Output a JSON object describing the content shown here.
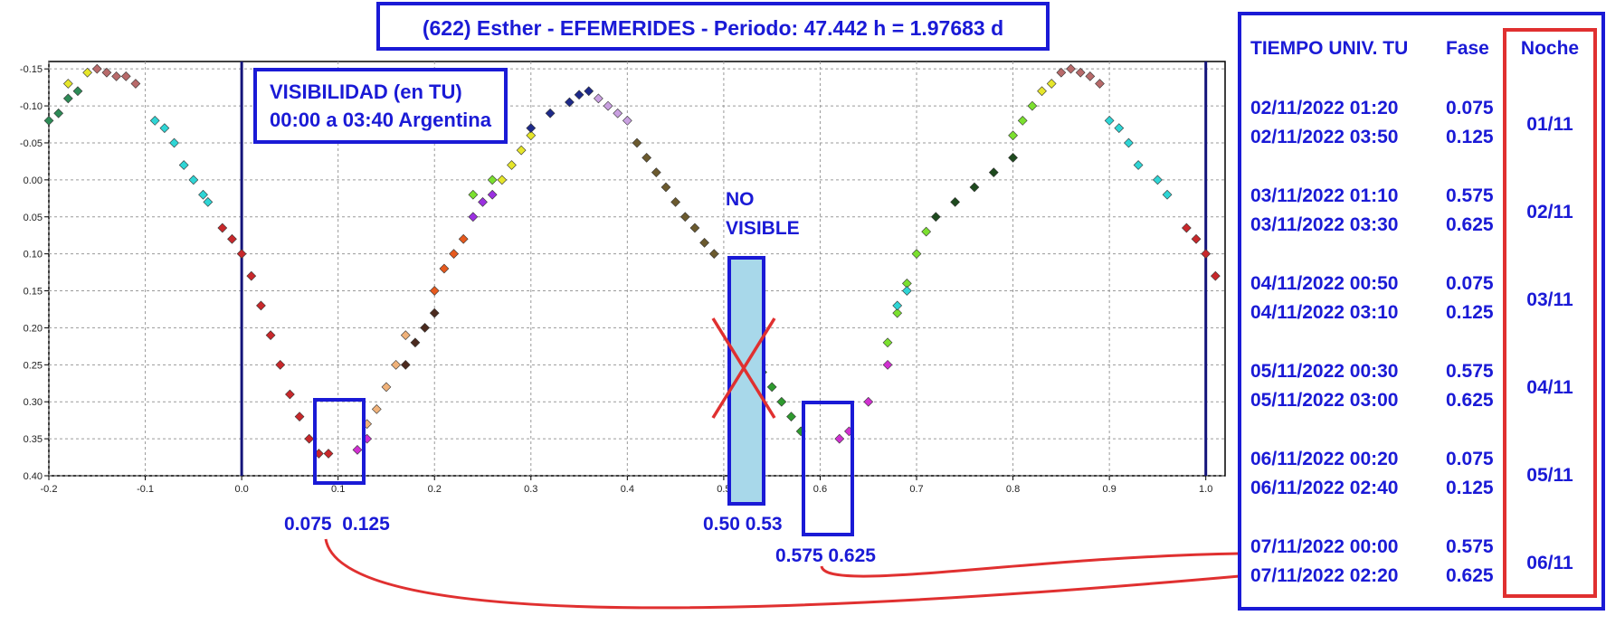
{
  "title": "(622) Esther - EFEMERIDES - Periodo: 47.442 h = 1.97683 d",
  "visibility": {
    "line1": "VISIBILIDAD (en TU)",
    "line2": "00:00 a 03:40 Argentina"
  },
  "no_visible": {
    "line1": "NO",
    "line2": "VISIBLE"
  },
  "phase_labels": {
    "w1": "0.075  0.125",
    "w2": "0.50 0.53",
    "w3": "0.575 0.625"
  },
  "colors": {
    "annotation_blue": "#1a1ad6",
    "night_red": "#e03030",
    "no_visible_fill": "#a8d8ea",
    "cross_red": "#e03030"
  },
  "ephemeris": {
    "header": {
      "time": "TIEMPO UNIV. TU",
      "phase": "Fase",
      "night": "Noche"
    },
    "groups": [
      {
        "night": "01/11",
        "rows": [
          {
            "time": "02/11/2022  01:20",
            "phase": "0.075"
          },
          {
            "time": "02/11/2022  03:50",
            "phase": "0.125"
          }
        ]
      },
      {
        "night": "02/11",
        "rows": [
          {
            "time": "03/11/2022  01:10",
            "phase": "0.575"
          },
          {
            "time": "03/11/2022  03:30",
            "phase": "0.625"
          }
        ]
      },
      {
        "night": "03/11",
        "rows": [
          {
            "time": "04/11/2022  00:50",
            "phase": "0.075"
          },
          {
            "time": "04/11/2022  03:10",
            "phase": "0.125"
          }
        ]
      },
      {
        "night": "04/11",
        "rows": [
          {
            "time": "05/11/2022  00:30",
            "phase": "0.575"
          },
          {
            "time": "05/11/2022  03:00",
            "phase": "0.625"
          }
        ]
      },
      {
        "night": "05/11",
        "rows": [
          {
            "time": "06/11/2022  00:20",
            "phase": "0.075"
          },
          {
            "time": "06/11/2022  02:40",
            "phase": "0.125"
          }
        ]
      },
      {
        "night": "06/11",
        "rows": [
          {
            "time": "07/11/2022  00:00",
            "phase": "0.575"
          },
          {
            "time": "07/11/2022  02:20",
            "phase": "0.625"
          }
        ]
      }
    ]
  },
  "chart_data": {
    "type": "scatter",
    "title": "(622) Esther - EFEMERIDES - Periodo: 47.442 h = 1.97683 d",
    "xlabel": "",
    "ylabel": "",
    "xlim": [
      -0.2,
      1.02
    ],
    "ylim": [
      -0.16,
      0.4
    ],
    "y_inverted": true,
    "grid": true,
    "x_ticks": [
      "-0.2",
      "-0.1",
      "0.0",
      "0.1",
      "0.2",
      "0.3",
      "0.4",
      "0.5",
      "0.6",
      "0.7",
      "0.8",
      "0.9",
      "1.0"
    ],
    "y_ticks": [
      "-0.15",
      "-0.10",
      "-0.05",
      "0.00",
      "0.05",
      "0.10",
      "0.15",
      "0.20",
      "0.25",
      "0.30",
      "0.35",
      "0.40"
    ],
    "phase_markers": [
      0.0,
      1.0
    ],
    "highlight_windows": [
      [
        0.075,
        0.125
      ],
      [
        0.5,
        0.53
      ],
      [
        0.575,
        0.625
      ]
    ],
    "series": [
      {
        "color": "#2e8b57",
        "x": [
          -0.2,
          -0.19,
          -0.18,
          -0.17
        ],
        "y": [
          -0.08,
          -0.09,
          -0.11,
          -0.12
        ]
      },
      {
        "color": "#e6e62a",
        "x": [
          -0.18,
          -0.16
        ],
        "y": [
          -0.13,
          -0.145
        ]
      },
      {
        "color": "#b86a6a",
        "x": [
          -0.15,
          -0.14,
          -0.13,
          -0.12,
          -0.11
        ],
        "y": [
          -0.15,
          -0.145,
          -0.14,
          -0.14,
          -0.13
        ]
      },
      {
        "color": "#2fd5d5",
        "x": [
          -0.09,
          -0.08,
          -0.07,
          -0.06,
          -0.05,
          -0.04,
          -0.035
        ],
        "y": [
          -0.08,
          -0.07,
          -0.05,
          -0.02,
          0.0,
          0.02,
          0.03
        ]
      },
      {
        "color": "#c8282b",
        "x": [
          -0.02,
          -0.01,
          0.0,
          0.01,
          0.02,
          0.03,
          0.04,
          0.05,
          0.06,
          0.07,
          0.08,
          0.09
        ],
        "y": [
          0.065,
          0.08,
          0.1,
          0.13,
          0.17,
          0.21,
          0.25,
          0.29,
          0.32,
          0.35,
          0.37,
          0.37
        ]
      },
      {
        "color": "#d030d0",
        "x": [
          0.12,
          0.13
        ],
        "y": [
          0.365,
          0.35
        ]
      },
      {
        "color": "#f0b27a",
        "x": [
          0.13,
          0.14,
          0.15,
          0.16,
          0.17
        ],
        "y": [
          0.33,
          0.31,
          0.28,
          0.25,
          0.21
        ]
      },
      {
        "color": "#4b2a1e",
        "x": [
          0.17,
          0.18,
          0.19,
          0.2
        ],
        "y": [
          0.25,
          0.22,
          0.2,
          0.18
        ]
      },
      {
        "color": "#e65a1e",
        "x": [
          0.2,
          0.21,
          0.22,
          0.23
        ],
        "y": [
          0.15,
          0.12,
          0.1,
          0.08
        ]
      },
      {
        "color": "#9b30e0",
        "x": [
          0.24,
          0.25,
          0.26
        ],
        "y": [
          0.05,
          0.03,
          0.02
        ]
      },
      {
        "color": "#7be02f",
        "x": [
          0.24,
          0.26
        ],
        "y": [
          0.02,
          0.0
        ]
      },
      {
        "color": "#e6e62a",
        "x": [
          0.27,
          0.28,
          0.29,
          0.3
        ],
        "y": [
          0.0,
          -0.02,
          -0.04,
          -0.06
        ]
      },
      {
        "color": "#1e2a8a",
        "x": [
          0.3,
          0.32,
          0.34,
          0.35,
          0.36
        ],
        "y": [
          -0.07,
          -0.09,
          -0.105,
          -0.115,
          -0.12
        ]
      },
      {
        "color": "#c9a0e0",
        "x": [
          0.37,
          0.38,
          0.39,
          0.4
        ],
        "y": [
          -0.11,
          -0.1,
          -0.09,
          -0.08
        ]
      },
      {
        "color": "#6b5a2e",
        "x": [
          0.41,
          0.42,
          0.43,
          0.44,
          0.45,
          0.46,
          0.47,
          0.48,
          0.49
        ],
        "y": [
          -0.05,
          -0.03,
          -0.01,
          0.01,
          0.03,
          0.05,
          0.065,
          0.085,
          0.1
        ]
      },
      {
        "color": "#2e9a2e",
        "x": [
          0.54,
          0.55,
          0.56,
          0.57,
          0.58
        ],
        "y": [
          0.26,
          0.28,
          0.3,
          0.32,
          0.34
        ]
      },
      {
        "color": "#d030d0",
        "x": [
          0.62,
          0.63,
          0.65,
          0.67
        ],
        "y": [
          0.35,
          0.34,
          0.3,
          0.25
        ]
      },
      {
        "color": "#7be02f",
        "x": [
          0.67,
          0.68,
          0.69,
          0.7,
          0.71
        ],
        "y": [
          0.22,
          0.18,
          0.14,
          0.1,
          0.07
        ]
      },
      {
        "color": "#2fd5d5",
        "x": [
          0.68,
          0.69
        ],
        "y": [
          0.17,
          0.15
        ]
      },
      {
        "color": "#1e4a1e",
        "x": [
          0.72,
          0.74,
          0.76,
          0.78,
          0.8
        ],
        "y": [
          0.05,
          0.03,
          0.01,
          -0.01,
          -0.03
        ]
      },
      {
        "color": "#7be02f",
        "x": [
          0.8,
          0.81,
          0.82
        ],
        "y": [
          -0.06,
          -0.08,
          -0.1
        ]
      },
      {
        "color": "#e6e62a",
        "x": [
          0.83,
          0.84
        ],
        "y": [
          -0.12,
          -0.13
        ]
      },
      {
        "color": "#b86a6a",
        "x": [
          0.85,
          0.86,
          0.87,
          0.88,
          0.89
        ],
        "y": [
          -0.145,
          -0.15,
          -0.145,
          -0.14,
          -0.13
        ]
      },
      {
        "color": "#2fd5d5",
        "x": [
          0.9,
          0.91,
          0.92,
          0.93,
          0.95,
          0.96
        ],
        "y": [
          -0.08,
          -0.07,
          -0.05,
          -0.02,
          0.0,
          0.02
        ]
      },
      {
        "color": "#c8282b",
        "x": [
          0.98,
          0.99,
          1.0,
          1.01
        ],
        "y": [
          0.065,
          0.08,
          0.1,
          0.13
        ]
      }
    ]
  }
}
